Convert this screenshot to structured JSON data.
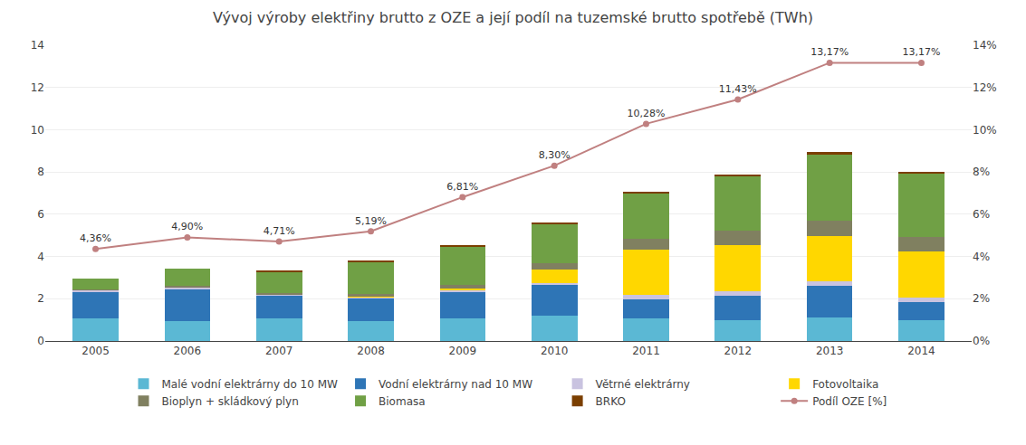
{
  "chart_data": {
    "type": "bar",
    "title": "Vývoj výroby elektřiny brutto z OZE a její podíl na tuzemské brutto spotřebě (TWh)",
    "categories": [
      "2005",
      "2006",
      "2007",
      "2008",
      "2009",
      "2010",
      "2011",
      "2012",
      "2013",
      "2014"
    ],
    "stacked": true,
    "grid": true,
    "legend": "bottom",
    "ylim": [
      0,
      14
    ],
    "yticks": [
      0,
      2,
      4,
      6,
      8,
      10,
      12,
      14
    ],
    "y2lim": [
      0,
      14
    ],
    "y2ticks": [
      {
        "value": 0,
        "label": "0%"
      },
      {
        "value": 2,
        "label": "2%"
      },
      {
        "value": 4,
        "label": "4%"
      },
      {
        "value": 6,
        "label": "6%"
      },
      {
        "value": 8,
        "label": "8%"
      },
      {
        "value": 10,
        "label": "10%"
      },
      {
        "value": 12,
        "label": "12%"
      },
      {
        "value": 14,
        "label": "14%"
      }
    ],
    "series": [
      {
        "name": "Malé vodní elektrárny do 10 MW",
        "color": "#5BB8D4",
        "values": [
          1.05,
          0.93,
          1.05,
          0.93,
          1.05,
          1.2,
          1.05,
          1.0,
          1.1,
          1.0
        ]
      },
      {
        "name": "Vodní elektrárny nad 10 MW",
        "color": "#2E75B6",
        "values": [
          1.3,
          1.55,
          1.1,
          1.1,
          1.3,
          1.45,
          0.9,
          1.15,
          1.5,
          0.85
        ]
      },
      {
        "name": "Větrné elektrárny",
        "color": "#C9C3E0",
        "values": [
          0.05,
          0.05,
          0.05,
          0.05,
          0.07,
          0.1,
          0.22,
          0.22,
          0.22,
          0.22
        ]
      },
      {
        "name": "Fotovoltaika",
        "color": "#FFD700",
        "values": [
          0.0,
          0.0,
          0.0,
          0.02,
          0.05,
          0.62,
          2.15,
          2.18,
          2.15,
          2.15
        ]
      },
      {
        "name": "Bioplyn + skládkový plyn",
        "color": "#808060",
        "values": [
          0.05,
          0.09,
          0.08,
          0.12,
          0.18,
          0.32,
          0.52,
          0.68,
          0.72,
          0.7
        ]
      },
      {
        "name": "Biomasa",
        "color": "#70A045",
        "values": [
          0.52,
          0.82,
          1.0,
          1.52,
          1.82,
          1.82,
          2.15,
          2.55,
          3.12,
          2.98
        ]
      },
      {
        "name": "BRKO",
        "color": "#7B3F00",
        "values": [
          0.0,
          0.0,
          0.05,
          0.05,
          0.08,
          0.1,
          0.08,
          0.1,
          0.12,
          0.12
        ]
      },
      {
        "name": "Podíl OZE [%]",
        "type": "line",
        "axis": "y2",
        "color": "#C08080",
        "marker": "circle",
        "data_labels": true,
        "values": [
          4.36,
          4.9,
          4.71,
          5.19,
          6.81,
          8.3,
          10.28,
          11.43,
          13.17,
          13.17
        ],
        "value_labels": [
          "4,36%",
          "4,90%",
          "4,71%",
          "5,19%",
          "6,81%",
          "8,30%",
          "10,28%",
          "11,43%",
          "13,17%",
          "13,17%"
        ]
      }
    ]
  }
}
